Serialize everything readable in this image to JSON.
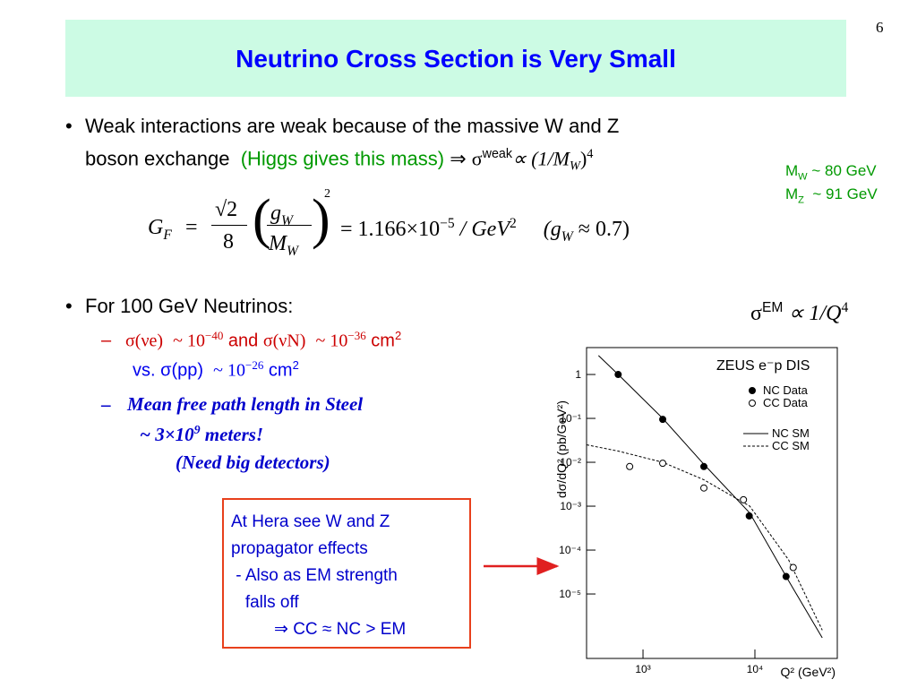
{
  "slide": {
    "page_number": "6",
    "title": "Neutrino Cross Section is Very Small",
    "bullet1": {
      "bullet": "•",
      "line1": "Weak interactions are weak because of the massive W and Z",
      "line2": "boson exchange",
      "higgs": "(Higgs gives this mass)",
      "implies": "⇒",
      "sigma": "σ",
      "weak": "weak",
      "prop": "∝ (1/M",
      "sub_w": "W",
      "close": ")",
      "pow": "4"
    },
    "masses": [
      {
        "m": "M",
        "sub": "W",
        "text": "~ 80 GeV"
      },
      {
        "m": "M",
        "sub": "Z",
        "text": "~ 91 GeV"
      }
    ],
    "formula": {
      "g": "G",
      "f": "F",
      "eq": "=",
      "sqrt2": "√2",
      "eight": "8",
      "gw": "g",
      "gw_sub": "W",
      "mw": "M",
      "mw_sub": "W",
      "sq": "2",
      "value": "= 1.166×10",
      "exp": "−5",
      "unit": "/ GeV",
      "unit_pow": "2",
      "paren": "(g",
      "paren_sub": "W",
      "approx": "≈ 0.7)"
    },
    "bullet2": {
      "bullet": "•",
      "text": "For 100 GeV Neutrinos:"
    },
    "em": {
      "sigma": "σ",
      "sup": "EM",
      "prop": "∝ 1/Q",
      "pow": "4"
    },
    "dash1": {
      "dash": "–",
      "a": "σ(νe)",
      "a_val": "~ 10",
      "a_exp": "−40",
      "and": "and",
      "b": "σ(νN)",
      "b_val": "~ 10",
      "b_exp": "−36",
      "unit": "cm",
      "unit_pow": "2",
      "vs": "vs.",
      "c": "σ(pp)",
      "c_val": "~ 10",
      "c_exp": "−26",
      "unit2": "cm",
      "unit2_pow": "2"
    },
    "dash2": {
      "dash": "–",
      "line1": "Mean free path length in Steel",
      "line2": "~ 3×10",
      "pow": "9",
      "line2b": "meters!",
      "line3": "(Need big detectors)"
    },
    "box": [
      "At Hera see W and Z",
      "propagator effects",
      " - Also as EM strength",
      "   falls off",
      "⇒ CC ≈ NC > EM"
    ]
  },
  "figure": {
    "title": "ZEUS e⁻p DIS",
    "ylabel": "dσ/dQ² (pb/GeV²)",
    "xlabel": "Q² (GeV²)",
    "log_x": true,
    "log_y": true,
    "xlim": [
      313,
      54500
    ],
    "ylim": [
      3.4e-07,
      4.1
    ],
    "xticks": [
      {
        "value": 1000,
        "label": "10³"
      },
      {
        "value": 10000,
        "label": "10⁴"
      }
    ],
    "yticks": [
      1,
      {
        "value": 0.1,
        "label": "10⁻¹"
      },
      {
        "value": 0.01,
        "label": "10⁻²"
      },
      {
        "value": 0.001,
        "label": "10⁻³"
      },
      {
        "value": 0.0001,
        "label": "10⁻⁴"
      },
      {
        "value": 1e-05,
        "label": "10⁻⁵"
      }
    ],
    "points": [
      {
        "name": "NC Data",
        "x": [
          600,
          1500,
          3500,
          8900,
          19000
        ],
        "values": [
          1.0,
          0.095,
          0.008,
          0.0006,
          2.5e-05
        ]
      },
      {
        "name": "CC Data",
        "x": [
          760,
          1500,
          3500,
          7900,
          22000
        ],
        "values": [
          0.008,
          0.0095,
          0.0026,
          0.0014,
          4e-05
        ]
      }
    ],
    "curves": [
      {
        "name": "NC SM",
        "x": [
          400,
          600,
          1500,
          3500,
          9000,
          20000,
          40000
        ],
        "values": [
          2.7,
          1,
          0.1,
          0.009,
          0.0007,
          2e-05,
          1e-06
        ]
      },
      {
        "name": "CC SM",
        "x": [
          313,
          600,
          1500,
          3500,
          9000,
          20000,
          40000
        ],
        "values": [
          0.025,
          0.018,
          0.01,
          0.004,
          0.001,
          6e-05,
          1.5e-06
        ]
      }
    ]
  }
}
